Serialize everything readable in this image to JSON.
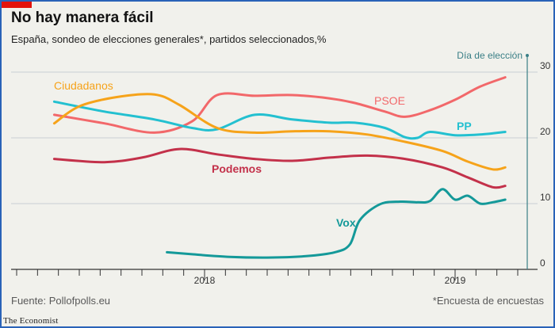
{
  "title": "No hay manera fácil",
  "subtitle": "España, sondeo de elecciones generales*, partidos seleccionados,%",
  "source": "Fuente: Pollofpolls.eu",
  "footnote": "*Encuesta de encuestas",
  "brand": "The Economist",
  "colors": {
    "PSOE": "#f2686a",
    "PP": "#23c0d0",
    "Ciudadanos": "#f6a31a",
    "Podemos": "#c3314a",
    "Vox": "#149999",
    "election": "#3a7f86",
    "accent": "#e3120b"
  },
  "chart_data": {
    "type": "line",
    "x_ticks": [
      "2018",
      "2019"
    ],
    "y_ticks": [
      "0",
      "10",
      "20",
      "30"
    ],
    "ylim": [
      0,
      31
    ],
    "annotation": "Día de elección",
    "series": [
      {
        "name": "PSOE",
        "x": [
          2017.4,
          2017.6,
          2017.8,
          2017.95,
          2018.05,
          2018.2,
          2018.35,
          2018.5,
          2018.6,
          2018.72,
          2018.8,
          2018.9,
          2019.0,
          2019.1,
          2019.2
        ],
        "values": [
          23.5,
          22.2,
          20.8,
          22.5,
          26.5,
          26.4,
          26.5,
          26.0,
          25.3,
          24.0,
          23.2,
          24.2,
          25.8,
          27.8,
          29.2
        ]
      },
      {
        "name": "PP",
        "x": [
          2017.4,
          2017.6,
          2017.8,
          2017.95,
          2018.05,
          2018.2,
          2018.35,
          2018.5,
          2018.6,
          2018.72,
          2018.8,
          2018.85,
          2018.9,
          2019.0,
          2019.1,
          2019.2
        ],
        "values": [
          25.5,
          24.0,
          22.8,
          21.5,
          21.3,
          23.5,
          22.8,
          22.3,
          22.3,
          21.5,
          20.1,
          20.0,
          20.9,
          20.4,
          20.5,
          20.9
        ]
      },
      {
        "name": "Ciudadanos",
        "x": [
          2017.4,
          2017.5,
          2017.65,
          2017.8,
          2017.9,
          2018.05,
          2018.2,
          2018.35,
          2018.5,
          2018.65,
          2018.8,
          2018.95,
          2019.05,
          2019.15,
          2019.2
        ],
        "values": [
          22.2,
          24.8,
          26.2,
          26.6,
          25.0,
          21.5,
          20.8,
          21.0,
          21.0,
          20.5,
          19.4,
          18.0,
          16.4,
          15.2,
          15.5
        ]
      },
      {
        "name": "Podemos",
        "x": [
          2017.4,
          2017.6,
          2017.75,
          2017.9,
          2018.05,
          2018.2,
          2018.35,
          2018.5,
          2018.65,
          2018.8,
          2018.95,
          2019.05,
          2019.15,
          2019.2
        ],
        "values": [
          16.8,
          16.3,
          17.0,
          18.3,
          17.5,
          16.8,
          16.5,
          17.0,
          17.3,
          16.8,
          15.5,
          14.0,
          12.5,
          12.7
        ]
      },
      {
        "name": "Vox",
        "x": [
          2017.85,
          2017.95,
          2018.1,
          2018.25,
          2018.4,
          2018.52,
          2018.58,
          2018.62,
          2018.7,
          2018.78,
          2018.85,
          2018.9,
          2018.95,
          2019.0,
          2019.05,
          2019.1,
          2019.15,
          2019.2
        ],
        "values": [
          2.6,
          2.3,
          1.9,
          1.8,
          2.0,
          2.6,
          3.8,
          7.5,
          9.9,
          10.3,
          10.2,
          10.4,
          12.2,
          10.6,
          11.2,
          10.0,
          10.2,
          10.6
        ]
      }
    ]
  }
}
